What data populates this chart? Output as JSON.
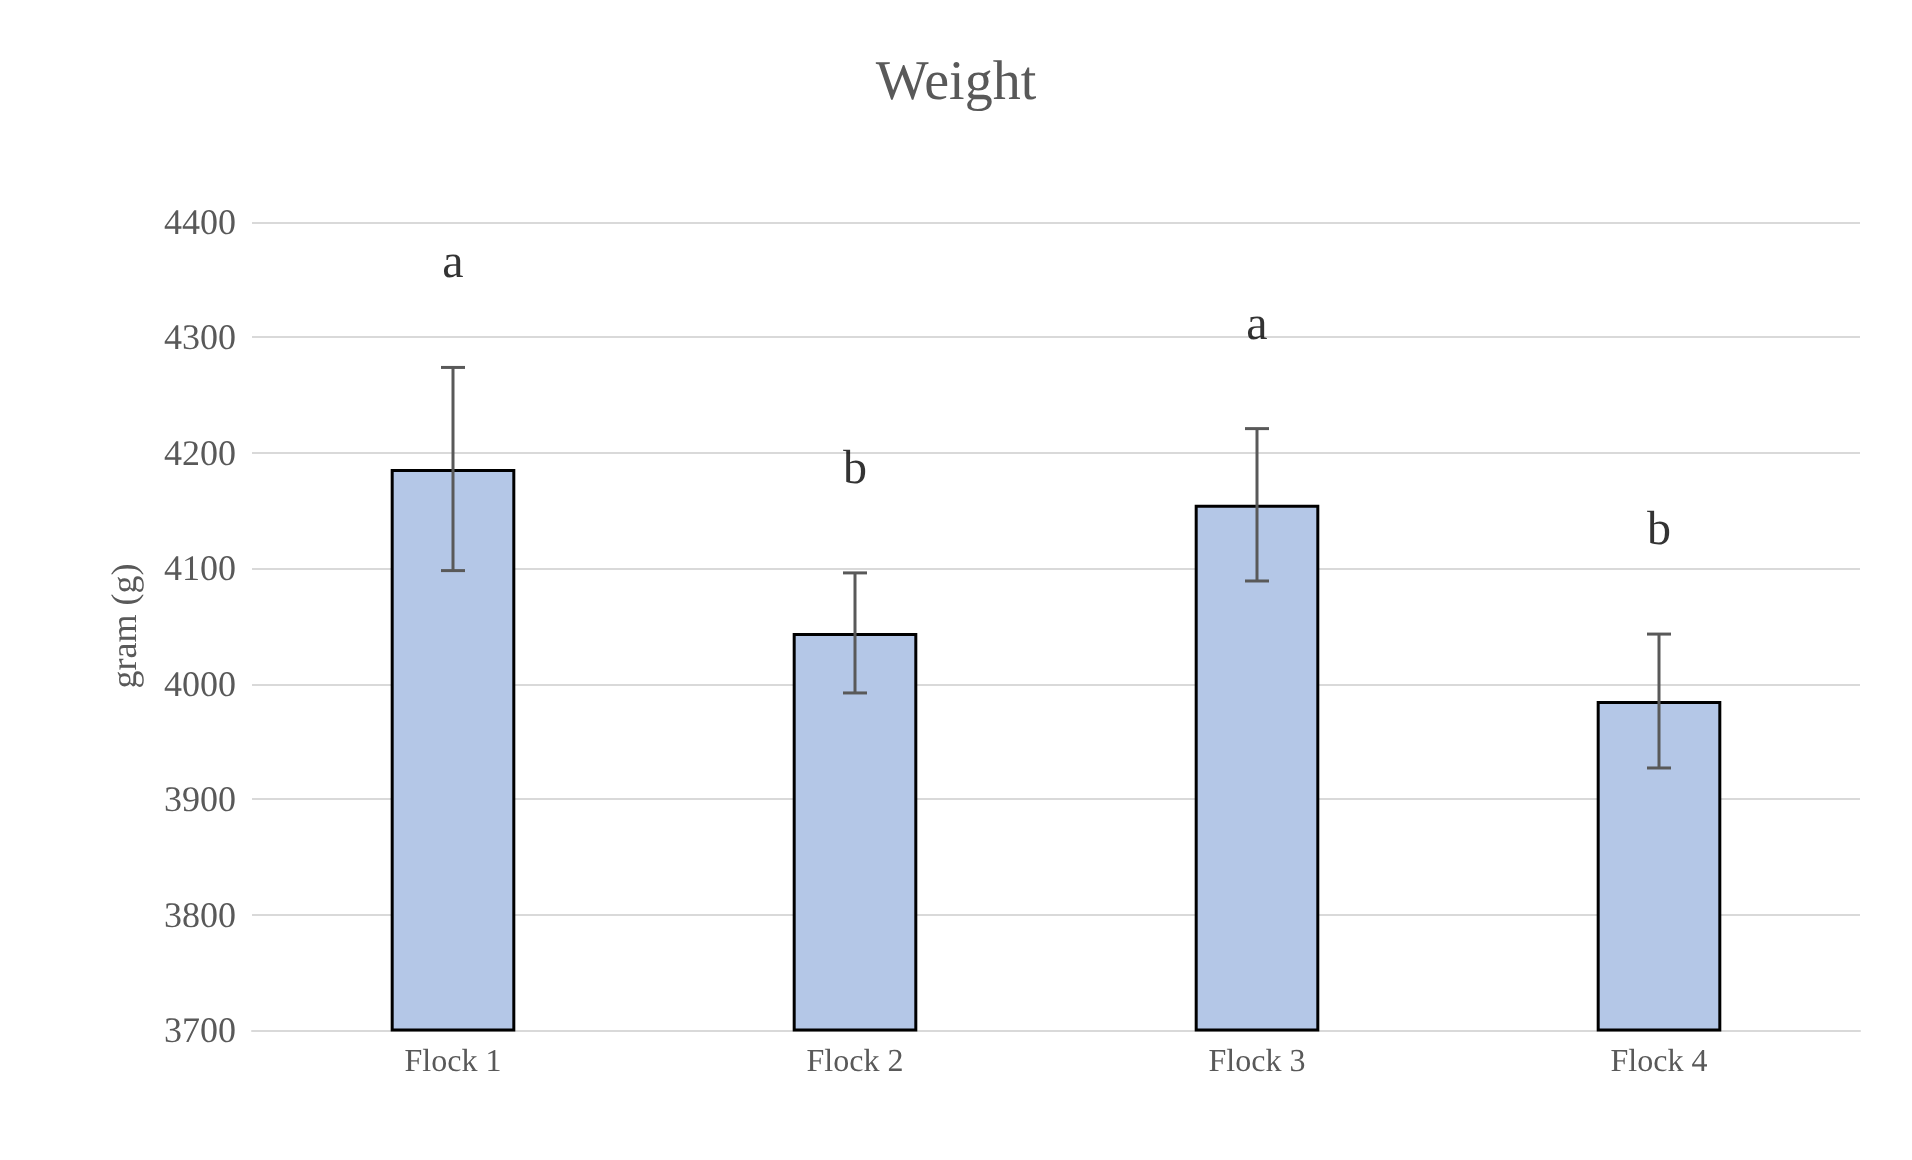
{
  "chart_data": {
    "type": "bar",
    "title": "Weight",
    "ylabel": "gram (g)",
    "categories": [
      "Flock 1",
      "Flock 2",
      "Flock 3",
      "Flock 4"
    ],
    "values": [
      4186,
      4044,
      4155,
      3985
    ],
    "errors": [
      88,
      52,
      66,
      58
    ],
    "color": "#b4c7e7",
    "ylim": [
      3700,
      4400
    ],
    "yticks": [
      3700,
      3800,
      3900,
      4000,
      4100,
      4200,
      4300,
      4400
    ],
    "grid": "y",
    "annotations": [
      "a",
      "b",
      "a",
      "b"
    ]
  }
}
